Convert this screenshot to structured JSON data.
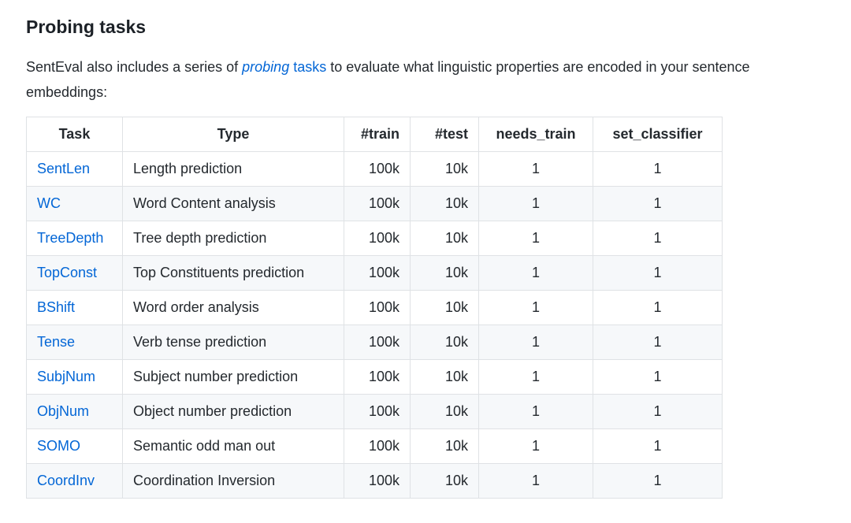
{
  "heading": "Probing tasks",
  "paragraph": {
    "text_before": "SentEval also includes a series of ",
    "link_em": "probing",
    "link_rest": " tasks",
    "text_after": " to evaluate what linguistic properties are encoded in your sentence embeddings:"
  },
  "table": {
    "columns": [
      {
        "key": "task",
        "label": "Task",
        "align": "left",
        "header_align": "center"
      },
      {
        "key": "type",
        "label": "Type",
        "align": "left",
        "header_align": "center"
      },
      {
        "key": "train",
        "label": "#train",
        "align": "right",
        "header_align": "right"
      },
      {
        "key": "test",
        "label": "#test",
        "align": "right",
        "header_align": "right"
      },
      {
        "key": "needs_train",
        "label": "needs_train",
        "align": "center",
        "header_align": "center"
      },
      {
        "key": "set_classifier",
        "label": "set_classifier",
        "align": "center",
        "header_align": "center"
      }
    ],
    "rows": [
      {
        "task": "SentLen",
        "type": "Length prediction",
        "train": "100k",
        "test": "10k",
        "needs_train": "1",
        "set_classifier": "1"
      },
      {
        "task": "WC",
        "type": "Word Content analysis",
        "train": "100k",
        "test": "10k",
        "needs_train": "1",
        "set_classifier": "1"
      },
      {
        "task": "TreeDepth",
        "type": "Tree depth prediction",
        "train": "100k",
        "test": "10k",
        "needs_train": "1",
        "set_classifier": "1"
      },
      {
        "task": "TopConst",
        "type": "Top Constituents prediction",
        "train": "100k",
        "test": "10k",
        "needs_train": "1",
        "set_classifier": "1"
      },
      {
        "task": "BShift",
        "type": "Word order analysis",
        "train": "100k",
        "test": "10k",
        "needs_train": "1",
        "set_classifier": "1"
      },
      {
        "task": "Tense",
        "type": "Verb tense prediction",
        "train": "100k",
        "test": "10k",
        "needs_train": "1",
        "set_classifier": "1"
      },
      {
        "task": "SubjNum",
        "type": "Subject number prediction",
        "train": "100k",
        "test": "10k",
        "needs_train": "1",
        "set_classifier": "1"
      },
      {
        "task": "ObjNum",
        "type": "Object number prediction",
        "train": "100k",
        "test": "10k",
        "needs_train": "1",
        "set_classifier": "1"
      },
      {
        "task": "SOMO",
        "type": "Semantic odd man out",
        "train": "100k",
        "test": "10k",
        "needs_train": "1",
        "set_classifier": "1"
      },
      {
        "task": "CoordInv",
        "type": "Coordination Inversion",
        "train": "100k",
        "test": "10k",
        "needs_train": "1",
        "set_classifier": "1"
      }
    ]
  },
  "colors": {
    "link_blue": "#0366d6",
    "body_text": "#24292e",
    "table_border": "#dfe2e5",
    "row_stripe": "#f6f8fa",
    "background": "#ffffff"
  }
}
